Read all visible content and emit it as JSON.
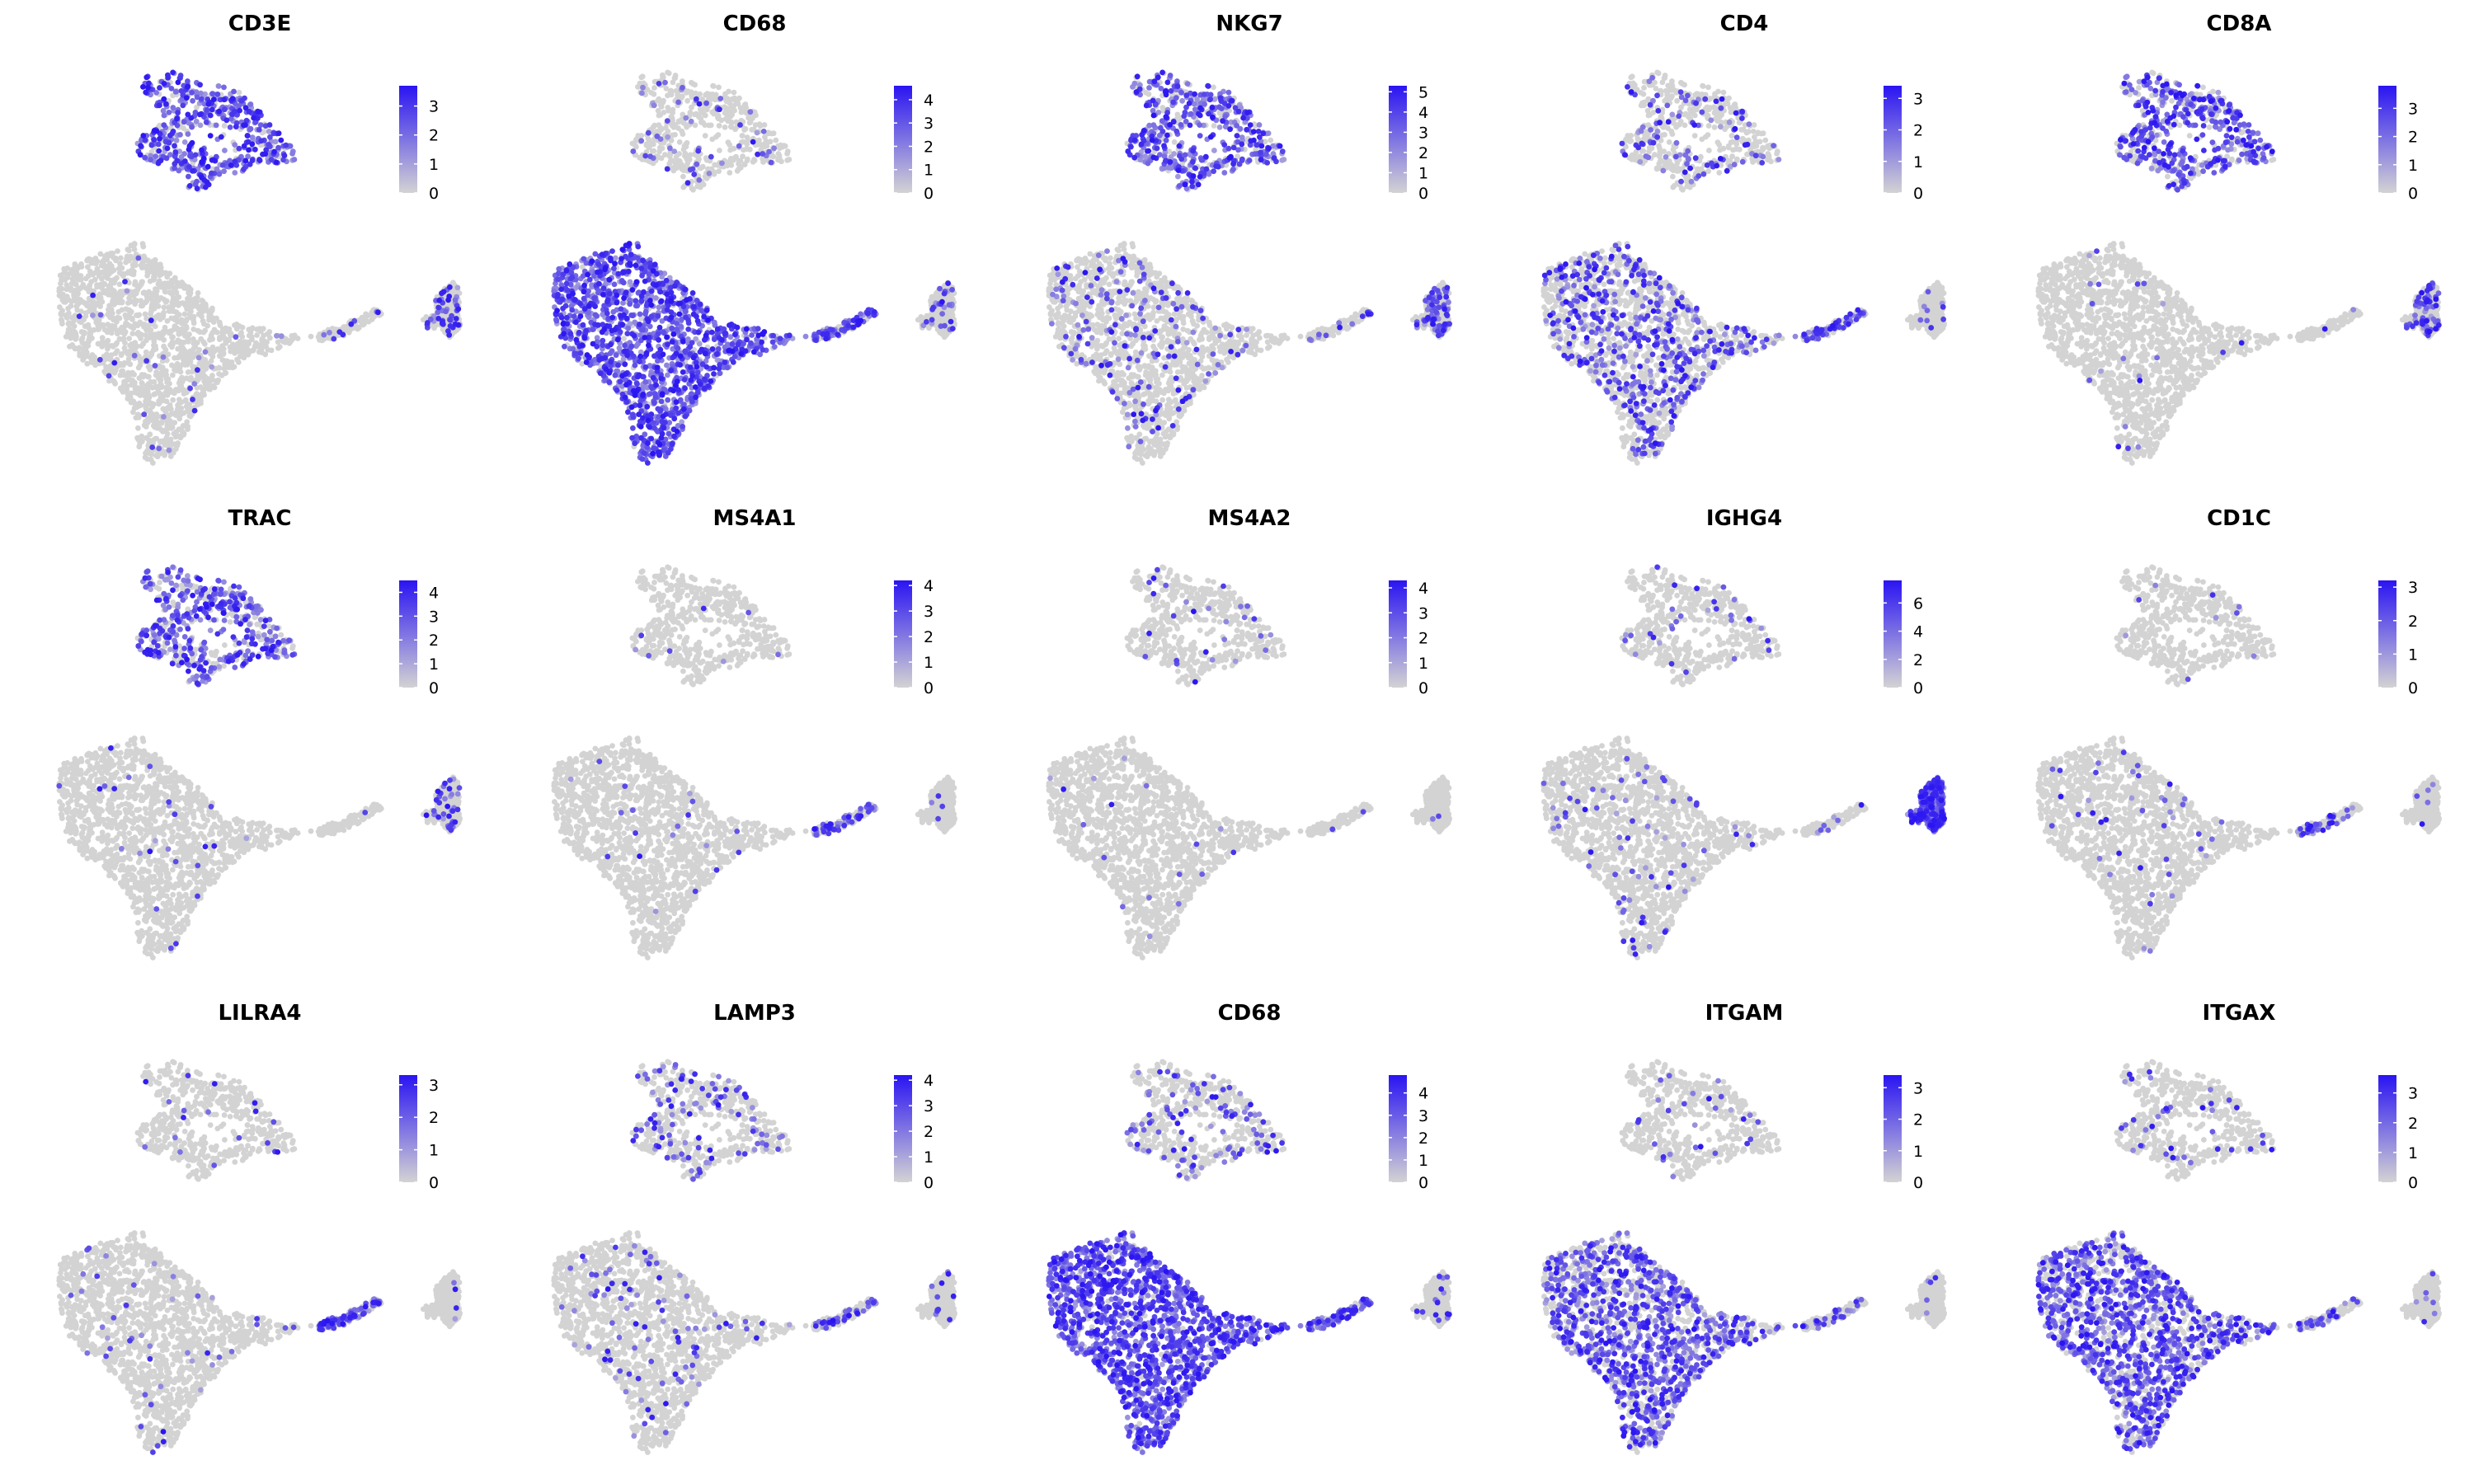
{
  "chart_data": {
    "type": "scatter",
    "plot_kind": "UMAP feature plot grid",
    "layout": {
      "rows": 3,
      "cols": 5
    },
    "color_scale": {
      "low": "#d3d3d3",
      "high": "#2a14f2"
    },
    "axes": "hidden",
    "legend_placement": "right of each panel",
    "panels": [
      {
        "gene": "CD3E",
        "legend_ticks": [
          "3",
          "2",
          "1",
          "0"
        ],
        "vmax": 3.7,
        "expression": {
          "top_cluster": 0.85,
          "main_cluster": 0.03,
          "arm": 0.05,
          "right_cluster": 0.15
        }
      },
      {
        "gene": "CD68",
        "legend_ticks": [
          "4",
          "3",
          "2",
          "1",
          "0"
        ],
        "vmax": 4.6,
        "expression": {
          "top_cluster": 0.1,
          "main_cluster": 0.9,
          "arm": 0.6,
          "right_cluster": 0.1
        }
      },
      {
        "gene": "NKG7",
        "legend_ticks": [
          "5",
          "4",
          "3",
          "2",
          "1",
          "0"
        ],
        "vmax": 5.3,
        "expression": {
          "top_cluster": 0.75,
          "main_cluster": 0.12,
          "arm": 0.1,
          "right_cluster": 0.2
        }
      },
      {
        "gene": "CD4",
        "legend_ticks": [
          "3",
          "2",
          "1",
          "0"
        ],
        "vmax": 3.4,
        "expression": {
          "top_cluster": 0.2,
          "main_cluster": 0.3,
          "arm": 0.4,
          "right_cluster": 0.02
        }
      },
      {
        "gene": "CD8A",
        "legend_ticks": [
          "3",
          "2",
          "1",
          "0"
        ],
        "vmax": 3.8,
        "expression": {
          "top_cluster": 0.7,
          "main_cluster": 0.02,
          "arm": 0.02,
          "right_cluster": 0.2
        }
      },
      {
        "gene": "TRAC",
        "legend_ticks": [
          "4",
          "3",
          "2",
          "1",
          "0"
        ],
        "vmax": 4.5,
        "expression": {
          "top_cluster": 0.65,
          "main_cluster": 0.02,
          "arm": 0.03,
          "right_cluster": 0.1
        }
      },
      {
        "gene": "MS4A1",
        "legend_ticks": [
          "4",
          "3",
          "2",
          "1",
          "0"
        ],
        "vmax": 4.2,
        "expression": {
          "top_cluster": 0.02,
          "main_cluster": 0.01,
          "arm": 0.35,
          "right_cluster": 0.01
        }
      },
      {
        "gene": "MS4A2",
        "legend_ticks": [
          "4",
          "3",
          "2",
          "1",
          "0"
        ],
        "vmax": 4.3,
        "expression": {
          "top_cluster": 0.04,
          "main_cluster": 0.01,
          "arm": 0.02,
          "right_cluster": 0.01
        }
      },
      {
        "gene": "IGHG4",
        "legend_ticks": [
          "6",
          "4",
          "2",
          "0"
        ],
        "vmax": 7.6,
        "expression": {
          "top_cluster": 0.05,
          "main_cluster": 0.04,
          "arm": 0.05,
          "right_cluster": 0.9
        }
      },
      {
        "gene": "CD1C",
        "legend_ticks": [
          "3",
          "2",
          "1",
          "0"
        ],
        "vmax": 3.2,
        "expression": {
          "top_cluster": 0.02,
          "main_cluster": 0.03,
          "arm": 0.3,
          "right_cluster": 0.01
        }
      },
      {
        "gene": "LILRA4",
        "legend_ticks": [
          "3",
          "2",
          "1",
          "0"
        ],
        "vmax": 3.3,
        "expression": {
          "top_cluster": 0.02,
          "main_cluster": 0.02,
          "arm": 0.6,
          "right_cluster": 0.01
        }
      },
      {
        "gene": "LAMP3",
        "legend_ticks": [
          "4",
          "3",
          "2",
          "1",
          "0"
        ],
        "vmax": 4.2,
        "expression": {
          "top_cluster": 0.2,
          "main_cluster": 0.06,
          "arm": 0.3,
          "right_cluster": 0.02
        }
      },
      {
        "gene": "CD68",
        "legend_ticks": [
          "4",
          "3",
          "2",
          "1",
          "0"
        ],
        "vmax": 4.8,
        "expression": {
          "top_cluster": 0.2,
          "main_cluster": 0.9,
          "arm": 0.6,
          "right_cluster": 0.05
        }
      },
      {
        "gene": "ITGAM",
        "legend_ticks": [
          "3",
          "2",
          "1",
          "0"
        ],
        "vmax": 3.4,
        "expression": {
          "top_cluster": 0.05,
          "main_cluster": 0.55,
          "arm": 0.15,
          "right_cluster": 0.02
        }
      },
      {
        "gene": "ITGAX",
        "legend_ticks": [
          "3",
          "2",
          "1",
          "0"
        ],
        "vmax": 3.6,
        "expression": {
          "top_cluster": 0.08,
          "main_cluster": 0.6,
          "arm": 0.2,
          "right_cluster": 0.02
        }
      }
    ]
  }
}
